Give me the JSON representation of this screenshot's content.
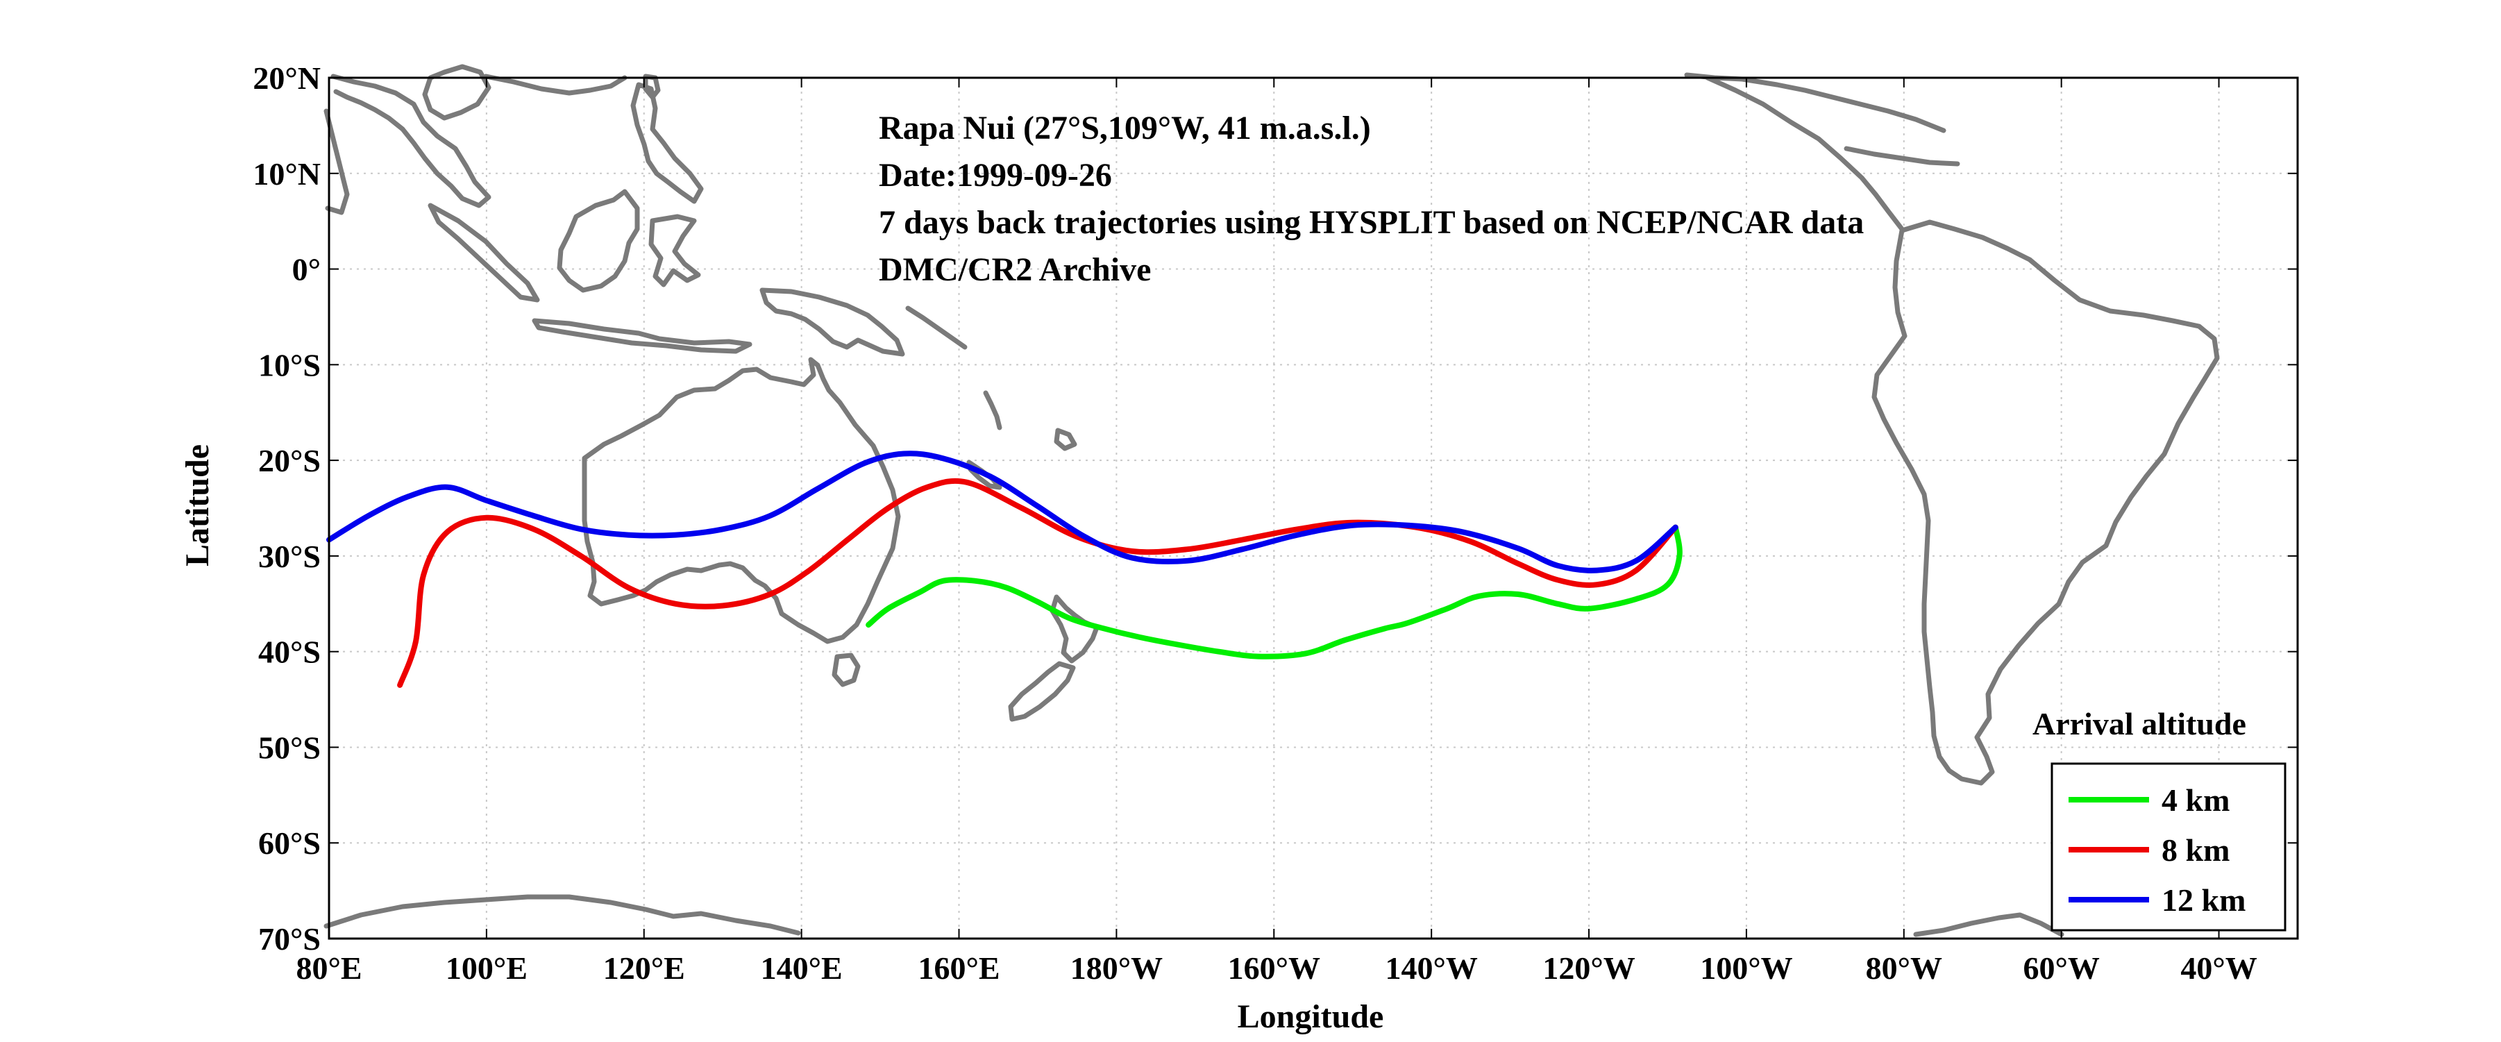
{
  "chart_data": {
    "type": "line",
    "xlabel": "Longitude",
    "ylabel": "Latitude",
    "xlim": [
      80,
      330
    ],
    "ylim": [
      -70,
      20
    ],
    "grid": true,
    "legend_placement": "bottom-right",
    "x_ticks": [
      {
        "value": 80,
        "label": "80°E"
      },
      {
        "value": 100,
        "label": "100°E"
      },
      {
        "value": 120,
        "label": "120°E"
      },
      {
        "value": 140,
        "label": "140°E"
      },
      {
        "value": 160,
        "label": "160°E"
      },
      {
        "value": 180,
        "label": "180°W"
      },
      {
        "value": 200,
        "label": "160°W"
      },
      {
        "value": 220,
        "label": "140°W"
      },
      {
        "value": 240,
        "label": "120°W"
      },
      {
        "value": 260,
        "label": "100°W"
      },
      {
        "value": 280,
        "label": "80°W"
      },
      {
        "value": 300,
        "label": "60°W"
      },
      {
        "value": 320,
        "label": "40°W"
      }
    ],
    "y_ticks": [
      {
        "value": 20,
        "label": "20°N"
      },
      {
        "value": 10,
        "label": "10°N"
      },
      {
        "value": 0,
        "label": "0°"
      },
      {
        "value": -10,
        "label": "10°S"
      },
      {
        "value": -20,
        "label": "20°S"
      },
      {
        "value": -30,
        "label": "30°S"
      },
      {
        "value": -40,
        "label": "40°S"
      },
      {
        "value": -50,
        "label": "50°S"
      },
      {
        "value": -60,
        "label": "60°S"
      },
      {
        "value": -70,
        "label": "70°S"
      }
    ],
    "annotations": [
      "Rapa Nui (27°S,109°W, 41 m.a.s.l.)",
      "Date:1999-09-26",
      "7 days back trajectories using HYSPLIT based on NCEP/NCAR data",
      "DMC/CR2 Archive"
    ],
    "legend_title": "Arrival altitude",
    "series": [
      {
        "name": "4 km",
        "color": "#00ee00",
        "x": [
          251,
          251.5,
          250,
          246,
          240,
          236,
          231,
          226,
          222,
          217,
          214,
          209,
          204,
          198,
          193,
          188,
          183,
          178,
          174,
          170,
          166,
          162,
          158,
          155,
          151,
          148.5
        ],
        "y": [
          -27,
          -30,
          -33,
          -34.5,
          -35.5,
          -35,
          -34,
          -34.2,
          -35.5,
          -37,
          -37.6,
          -38.8,
          -40.2,
          -40.5,
          -40,
          -39.3,
          -38.5,
          -37.5,
          -36.5,
          -34.8,
          -33.3,
          -32.6,
          -32.6,
          -33.8,
          -35.5,
          -37.2
        ]
      },
      {
        "name": "8 km",
        "color": "#ee0000",
        "x": [
          251,
          246,
          241,
          236,
          231,
          225,
          218,
          210,
          203,
          196,
          189,
          182,
          175,
          168,
          161,
          156,
          151,
          146,
          141,
          136,
          130,
          124,
          118,
          112,
          106,
          100,
          95,
          92,
          91,
          89
        ],
        "y": [
          -27,
          -31.5,
          -33,
          -32.5,
          -30.8,
          -28.5,
          -27,
          -26.5,
          -27.2,
          -28.3,
          -29.3,
          -29.5,
          -28,
          -25,
          -22.3,
          -22.8,
          -25,
          -28.2,
          -31.5,
          -34,
          -35.2,
          -35,
          -33.3,
          -30,
          -27.2,
          -26,
          -27.5,
          -32,
          -39,
          -43.5
        ]
      },
      {
        "name": "12 km",
        "color": "#0000ee",
        "x": [
          251,
          246,
          241,
          236,
          231,
          224,
          217,
          210,
          203,
          196,
          189,
          182,
          176,
          170,
          164,
          158,
          153,
          148,
          142,
          136,
          130,
          124,
          118,
          112,
          106,
          100,
          95,
          90,
          85,
          80
        ],
        "y": [
          -27,
          -30.5,
          -31.5,
          -31,
          -29.2,
          -27.5,
          -26.8,
          -26.8,
          -27.8,
          -29.3,
          -30.5,
          -30.2,
          -28,
          -24.8,
          -21.7,
          -19.8,
          -19.3,
          -20.3,
          -23,
          -25.8,
          -27.2,
          -27.8,
          -27.8,
          -27.2,
          -25.8,
          -24.2,
          -22.8,
          -23.8,
          -25.8,
          -28.3
        ]
      }
    ],
    "coastline_color": "#7a7a7a"
  }
}
